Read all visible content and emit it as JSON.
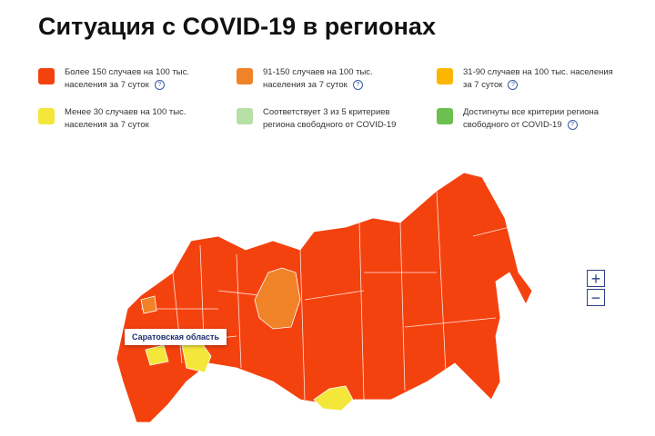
{
  "header": {
    "title": "Ситуация с COVID-19 в регионах"
  },
  "legend": [
    {
      "label": "Более 150 случаев на 100 тыс. населения за 7 суток",
      "color": "#f4420f"
    },
    {
      "label": "91-150 случаев на 100 тыс. населения за 7 суток",
      "color": "#f08228"
    },
    {
      "label": "31-90 случаев на 100 тыс. населения за 7 суток",
      "color": "#fbb600"
    },
    {
      "label": "Менее 30 случаев на 100 тыс. населения за 7 суток",
      "color": "#f4e73a"
    },
    {
      "label": "Соответствует 3 из 5 критериев региона свободного от COVID-19",
      "color": "#b6e0a6"
    },
    {
      "label": "Достигнуты все критерии региона свободного от COVID-19",
      "color": "#6cc04f"
    }
  ],
  "tooltip": {
    "label": "Саратовская область"
  },
  "zoom": {
    "in": "+",
    "out": "−"
  }
}
